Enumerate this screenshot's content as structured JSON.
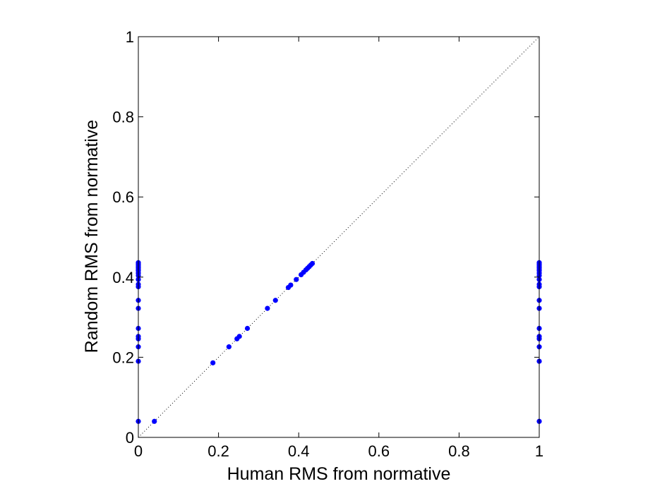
{
  "chart_data": {
    "type": "scatter",
    "xlabel": "Human RMS from normative",
    "ylabel": "Random RMS from normative",
    "xlim": [
      0,
      1
    ],
    "ylim": [
      0,
      1
    ],
    "xticks": [
      "0",
      "0.2",
      "0.4",
      "0.6",
      "0.8",
      "1"
    ],
    "yticks": [
      "0",
      "0.2",
      "0.4",
      "0.6",
      "0.8",
      "1"
    ],
    "grid": false,
    "reference_line": "dotted diagonal y = x",
    "marker_color": "#0000ff",
    "series": [
      {
        "points": [
          [
            0,
            0.04
          ],
          [
            0,
            0.19
          ],
          [
            0,
            0.226
          ],
          [
            0,
            0.246
          ],
          [
            0,
            0.252
          ],
          [
            0,
            0.272
          ],
          [
            0,
            0.322
          ],
          [
            0,
            0.342
          ],
          [
            0,
            0.376
          ],
          [
            0,
            0.382
          ],
          [
            0,
            0.394
          ],
          [
            0,
            0.404
          ],
          [
            0,
            0.41
          ],
          [
            0,
            0.416
          ],
          [
            0,
            0.42
          ],
          [
            0,
            0.424
          ],
          [
            0,
            0.428
          ],
          [
            0,
            0.432
          ],
          [
            0,
            0.436
          ],
          [
            0.04,
            0.04
          ],
          [
            0.186,
            0.186
          ],
          [
            0.226,
            0.226
          ],
          [
            0.246,
            0.246
          ],
          [
            0.252,
            0.252
          ],
          [
            0.272,
            0.272
          ],
          [
            0.322,
            0.322
          ],
          [
            0.342,
            0.342
          ],
          [
            0.374,
            0.374
          ],
          [
            0.38,
            0.38
          ],
          [
            0.394,
            0.394
          ],
          [
            0.406,
            0.406
          ],
          [
            0.412,
            0.412
          ],
          [
            0.418,
            0.418
          ],
          [
            0.422,
            0.422
          ],
          [
            0.426,
            0.426
          ],
          [
            0.43,
            0.43
          ],
          [
            0.434,
            0.434
          ],
          [
            1,
            0.04
          ],
          [
            1,
            0.19
          ],
          [
            1,
            0.226
          ],
          [
            1,
            0.246
          ],
          [
            1,
            0.252
          ],
          [
            1,
            0.272
          ],
          [
            1,
            0.322
          ],
          [
            1,
            0.342
          ],
          [
            1,
            0.376
          ],
          [
            1,
            0.382
          ],
          [
            1,
            0.394
          ],
          [
            1,
            0.404
          ],
          [
            1,
            0.41
          ],
          [
            1,
            0.416
          ],
          [
            1,
            0.42
          ],
          [
            1,
            0.424
          ],
          [
            1,
            0.428
          ],
          [
            1,
            0.432
          ],
          [
            1,
            0.436
          ]
        ]
      }
    ]
  }
}
